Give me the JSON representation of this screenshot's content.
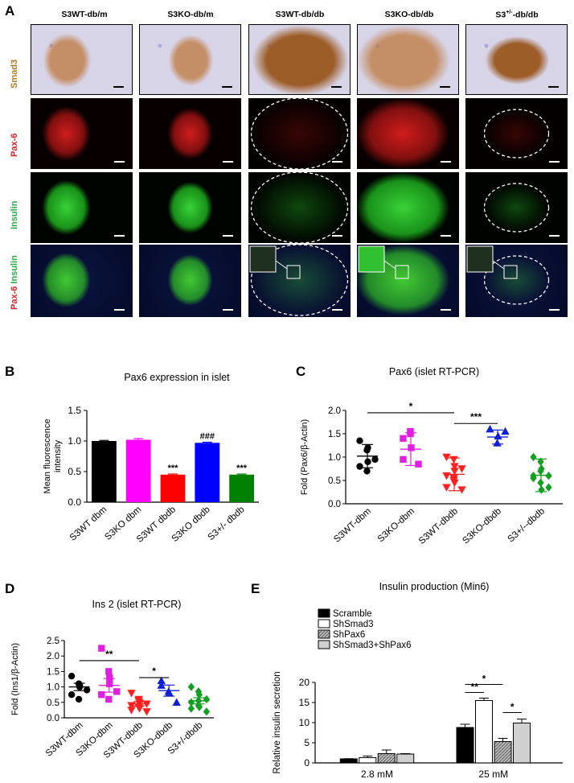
{
  "panelA": {
    "letter": "A",
    "columns": [
      "S3WT-db/m",
      "S3KO-db/m",
      "S3WT-db/db",
      "S3KO-db/db",
      "S3+/--db/db"
    ],
    "col5_parts": {
      "base": "S3",
      "sup": "+/-",
      "tail": "-db/db"
    },
    "rows": {
      "smad3": "Smad3",
      "pax6": "Pax-6",
      "insulin": "Insulin",
      "merge_a": "Pax-6",
      "merge_b": "Insulin"
    },
    "colors": {
      "smad3": "#b07a1e",
      "pax6": "#e02020",
      "insulin": "#20b040"
    }
  },
  "panelB": {
    "letter": "B",
    "chart_data": {
      "type": "bar",
      "title": "Pax6 expression in islet",
      "ylabel": "Mean fluorescence intensity",
      "ylabel_lines": [
        "Mean fluorescence",
        "intensity"
      ],
      "categories": [
        "S3WT dbm",
        "S3KO dbm",
        "S3WT dbdb",
        "S3KO dbdb",
        "S3+/- dbdb"
      ],
      "values": [
        1.0,
        1.02,
        0.45,
        0.97,
        0.45
      ],
      "errors": [
        0.01,
        0.02,
        0.01,
        0.01,
        0.01
      ],
      "colors": [
        "#000000",
        "#ff00ff",
        "#ff0000",
        "#0000ff",
        "#008000"
      ],
      "annotations": [
        "",
        "",
        "***",
        "###",
        "***"
      ],
      "ylim": [
        0,
        1.5
      ],
      "yticks": [
        "0.0",
        "0.5",
        "1.0",
        "1.5"
      ]
    }
  },
  "panelC": {
    "letter": "C",
    "chart_data": {
      "type": "scatter",
      "title": "Pax6 (islet RT-PCR)",
      "ylabel": "Fold (Pax6/β-Actin)",
      "categories": [
        "S3WT-dbm",
        "S3KO-dbm",
        "S3WT-dbdb",
        "S3KO-dbdb",
        "S3+/--dbdb"
      ],
      "colors": [
        "#000000",
        "#e020e0",
        "#ff2020",
        "#1020d0",
        "#10a020"
      ],
      "markers": [
        "circle",
        "square",
        "triangle-down",
        "triangle",
        "diamond"
      ],
      "points": [
        [
          1.35,
          1.15,
          1.2,
          0.95,
          0.8,
          0.7,
          0.9
        ],
        [
          1.4,
          1.5,
          1.2,
          0.85,
          0.95,
          1.55
        ],
        [
          1.0,
          0.95,
          0.8,
          0.75,
          0.6,
          0.55,
          0.45,
          0.3,
          0.35,
          0.5,
          0.7
        ],
        [
          1.6,
          1.3,
          1.45,
          1.55
        ],
        [
          1.0,
          0.9,
          0.75,
          0.6,
          0.55,
          0.45,
          0.3,
          0.35,
          0.6,
          0.7
        ]
      ],
      "means": [
        1.02,
        1.17,
        0.63,
        1.43,
        0.61
      ],
      "sd": [
        0.25,
        0.35,
        0.35,
        0.15,
        0.35
      ],
      "brackets": [
        {
          "from": 0,
          "to": 2,
          "label": "*",
          "y": 1.95
        },
        {
          "from": 2,
          "to": 3,
          "label": "***",
          "y": 1.72
        }
      ],
      "ylim": [
        0,
        2.0
      ],
      "yticks": [
        "0.0",
        "0.5",
        "1.0",
        "1.5",
        "2.0"
      ]
    }
  },
  "panelD": {
    "letter": "D",
    "chart_data": {
      "type": "scatter",
      "title": "Ins 2 (islet RT-PCR)",
      "ylabel": "Fold (Ins1/β-Actin)",
      "categories": [
        "S3WT-dbm",
        "S3KO-dbm",
        "S3WT-dbdb",
        "S3KO-dbdb",
        "S3+/-dbdb"
      ],
      "colors": [
        "#000000",
        "#e020e0",
        "#ff2020",
        "#1020d0",
        "#10a020"
      ],
      "markers": [
        "circle",
        "square",
        "triangle-down",
        "triangle",
        "diamond"
      ],
      "points": [
        [
          1.35,
          1.1,
          1.0,
          0.9,
          0.75,
          0.6,
          1.05
        ],
        [
          2.25,
          1.5,
          1.1,
          0.85,
          0.75,
          0.6,
          1.3
        ],
        [
          0.8,
          0.6,
          0.5,
          0.45,
          0.4,
          0.35,
          0.3,
          0.2,
          0.25,
          0.55,
          0.45
        ],
        [
          1.2,
          0.85,
          0.8,
          0.5,
          1.05
        ],
        [
          1.0,
          0.85,
          0.75,
          0.6,
          0.5,
          0.4,
          0.35,
          0.2,
          0.3,
          0.55
        ]
      ],
      "means": [
        1.0,
        1.05,
        0.45,
        0.88,
        0.55
      ],
      "sem": [
        0.12,
        0.22,
        0.07,
        0.18,
        0.1
      ],
      "brackets": [
        {
          "from": 0,
          "to": 2,
          "label": "**",
          "y": 1.85
        },
        {
          "from": 2,
          "to": 3,
          "label": "*",
          "y": 1.3
        }
      ],
      "ylim": [
        0,
        2.5
      ],
      "yticks": [
        "0.0",
        "0.5",
        "1.0",
        "1.5",
        "2.0",
        "2.5"
      ]
    }
  },
  "panelE": {
    "letter": "E",
    "chart_data": {
      "type": "bar",
      "title": "Insulin production (Min6)",
      "ylabel": "Relative  insulin secretion",
      "categories": [
        "2.8 mM",
        "25 mM"
      ],
      "series": [
        {
          "name": "Scramble",
          "values": [
            1.0,
            8.8
          ],
          "errors": [
            0.05,
            0.8
          ],
          "fill": "#000000"
        },
        {
          "name": "ShSmad3",
          "values": [
            1.3,
            15.5
          ],
          "errors": [
            0.4,
            0.6
          ],
          "fill": "#ffffff"
        },
        {
          "name": "ShPax6",
          "values": [
            2.3,
            5.3
          ],
          "errors": [
            0.9,
            0.8
          ],
          "fill": "hatch"
        },
        {
          "name": "ShSmad3+ShPax6",
          "values": [
            2.2,
            9.9
          ],
          "errors": [
            0.1,
            1.0
          ],
          "fill": "#d0d0d0"
        }
      ],
      "brackets": [
        {
          "label": "**",
          "group": 1,
          "from": 0,
          "to": 1,
          "y": 17.5
        },
        {
          "label": "*",
          "group": 1,
          "from": 0,
          "to": 2,
          "y": 19.5
        },
        {
          "label": "*",
          "group": 1,
          "from": 2,
          "to": 3,
          "y": 12.5
        }
      ],
      "ylim": [
        0,
        20
      ],
      "yticks": [
        "0",
        "5",
        "10",
        "15",
        "20"
      ]
    }
  }
}
